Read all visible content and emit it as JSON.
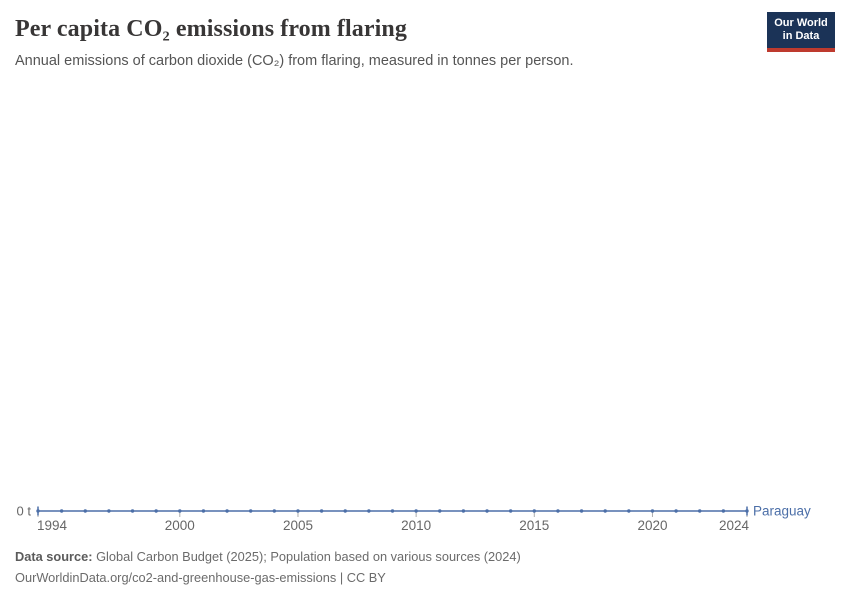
{
  "header": {
    "title": "Per capita CO₂ emissions from flaring",
    "subtitle": "Annual emissions of carbon dioxide (CO₂) from flaring, measured in tonnes per person.",
    "logo": {
      "line1": "Our World",
      "line2": "in Data"
    }
  },
  "chart_data": {
    "type": "line",
    "title": "Per capita CO₂ emissions from flaring",
    "entity": "Paraguay",
    "x": [
      1994,
      1995,
      1996,
      1997,
      1998,
      1999,
      2000,
      2001,
      2002,
      2003,
      2004,
      2005,
      2006,
      2007,
      2008,
      2009,
      2010,
      2011,
      2012,
      2013,
      2014,
      2015,
      2016,
      2017,
      2018,
      2019,
      2020,
      2021,
      2022,
      2023,
      2024
    ],
    "values": [
      0,
      0,
      0,
      0,
      0,
      0,
      0,
      0,
      0,
      0,
      0,
      0,
      0,
      0,
      0,
      0,
      0,
      0,
      0,
      0,
      0,
      0,
      0,
      0,
      0,
      0,
      0,
      0,
      0,
      0,
      0
    ],
    "x_ticks": [
      1994,
      2000,
      2005,
      2010,
      2015,
      2020,
      2024
    ],
    "y_axis_label": "0 t",
    "ylim": [
      0,
      0
    ],
    "xlabel": "",
    "ylabel": "",
    "grid": false,
    "legend_position": "end-of-line",
    "line_color": "#4C6FA8",
    "tick_label_color": "#676767",
    "tick_mark_color": "#adadad"
  },
  "footer": {
    "source_label": "Data source:",
    "source_text": " Global Carbon Budget (2025); Population based on various sources (2024)",
    "url_line": "OurWorldinData.org/co2-and-greenhouse-gas-emissions | CC BY"
  },
  "colors": {
    "title": "#383636",
    "subtitle": "#555555",
    "logo_bg": "#1B3357",
    "logo_stripe": "#BE3A2E"
  }
}
